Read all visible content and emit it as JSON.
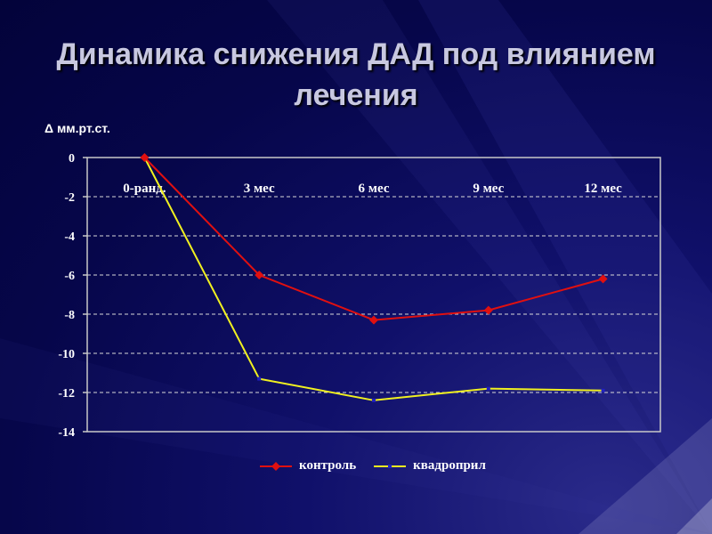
{
  "title": "Динамика снижения ДАД под влиянием лечения",
  "unit_label": "Δ мм.рт.ст.",
  "colors": {
    "control": "#e01010",
    "quadropril": "#f0f020",
    "grid": "#d8d8d8"
  },
  "chart_data": {
    "type": "line",
    "categories": [
      "0-ранд.",
      "3 мес",
      "6 мес",
      "9 мес",
      "12 мес"
    ],
    "ylim": [
      -14,
      0
    ],
    "yticks": [
      0,
      -2,
      -4,
      -6,
      -8,
      -10,
      -12,
      -14
    ],
    "grid": true,
    "legend": "bottom",
    "series": [
      {
        "name": "контроль",
        "values": [
          0,
          -6.0,
          -8.3,
          -7.8,
          -6.2
        ]
      },
      {
        "name": "квадроприл",
        "values": [
          0,
          -11.3,
          -12.4,
          -11.8,
          -11.9
        ]
      }
    ]
  }
}
